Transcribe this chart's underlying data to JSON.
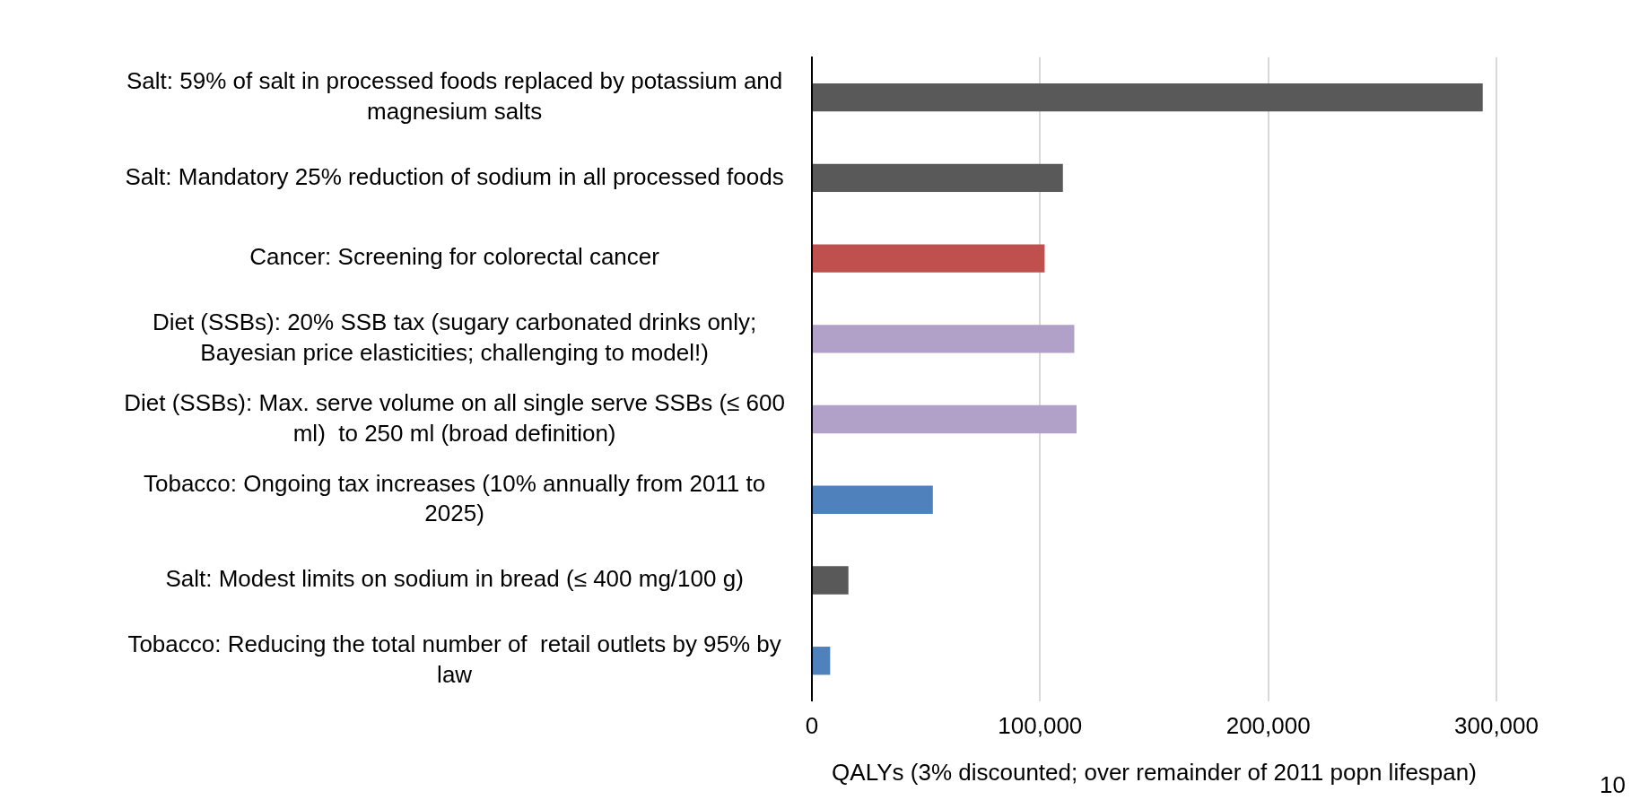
{
  "chart_data": {
    "type": "bar",
    "orientation": "horizontal",
    "categories": [
      "Salt: 59% of salt in processed foods replaced by potassium and magnesium salts",
      "Salt: Mandatory 25% reduction of sodium in all processed foods",
      "Cancer: Screening for colorectal cancer",
      "Diet (SSBs): 20% SSB tax (sugary carbonated drinks only; Bayesian price elasticities; challenging to model!)",
      "Diet (SSBs): Max. serve volume on all single serve SSBs (≤ 600 ml)  to 250 ml (broad definition)",
      "Tobacco: Ongoing tax increases (10% annually from 2011 to 2025)",
      "Salt: Modest limits on sodium in bread (≤ 400 mg/100 g)",
      "Tobacco: Reducing the total number of  retail outlets by 95% by law"
    ],
    "values": [
      294000,
      110000,
      102000,
      115000,
      116000,
      53000,
      16000,
      8000
    ],
    "colors": [
      "#595959",
      "#595959",
      "#c0504d",
      "#b1a0c7",
      "#b1a0c7",
      "#4f81bd",
      "#595959",
      "#4f81bd"
    ],
    "xlabel": "QALYs (3% discounted; over remainder of 2011 popn lifespan)",
    "xlim": [
      0,
      300000
    ],
    "xticks": [
      {
        "value": 0,
        "label": "0"
      },
      {
        "value": 100000,
        "label": "100,000"
      },
      {
        "value": 200000,
        "label": "200,000"
      },
      {
        "value": 300000,
        "label": "300,000"
      }
    ],
    "grid": "x",
    "legend": false,
    "annotations": [
      "10"
    ]
  }
}
